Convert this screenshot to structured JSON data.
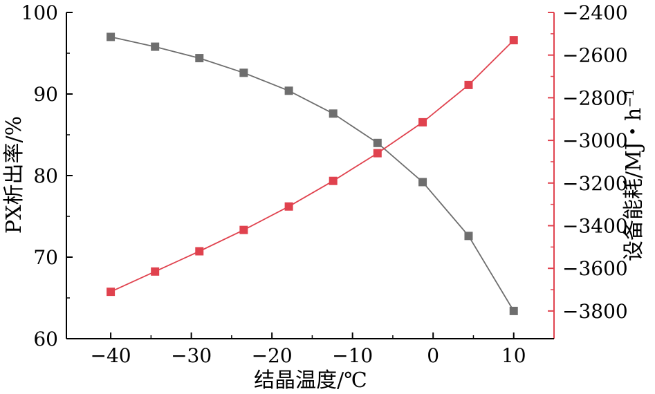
{
  "chart_data": {
    "type": "line",
    "xlabel": "结晶温度/℃",
    "ylabel_left": "PX析出率/%",
    "ylabel_right": "设备能耗/MJ・h⁻¹",
    "x_ticks": [
      "−40",
      "−30",
      "−20",
      "−10",
      "0",
      "10"
    ],
    "y_left_ticks": [
      "60",
      "70",
      "80",
      "90",
      "100"
    ],
    "y_right_ticks": [
      "−3800",
      "−3600",
      "−3400",
      "−3200",
      "−3000",
      "−2800",
      "−2600",
      "−2400"
    ],
    "xlim": [
      -45.5,
      15
    ],
    "ylim_left": [
      60,
      100
    ],
    "ylim_right": [
      -3930,
      -2400
    ],
    "grid": false,
    "series": [
      {
        "axis": "left",
        "color": "#6e6e6e",
        "marker": "square",
        "x": [
          -40,
          -34.5,
          -29,
          -23.5,
          -17.9,
          -12.4,
          -6.9,
          -1.3,
          4.4,
          10
        ],
        "y": [
          97.0,
          95.8,
          94.4,
          92.6,
          90.4,
          87.6,
          84.0,
          79.2,
          72.6,
          63.4
        ]
      },
      {
        "axis": "right",
        "color": "#e0424e",
        "marker": "square",
        "x": [
          -40,
          -34.5,
          -29,
          -23.5,
          -17.9,
          -12.4,
          -6.9,
          -1.3,
          4.4,
          10
        ],
        "y": [
          -3710,
          -3615,
          -3520,
          -3420,
          -3310,
          -3190,
          -3060,
          -2915,
          -2740,
          -2530
        ]
      }
    ],
    "colors": {
      "axis_right": "#e0424e",
      "axis_left": "#000000"
    }
  }
}
